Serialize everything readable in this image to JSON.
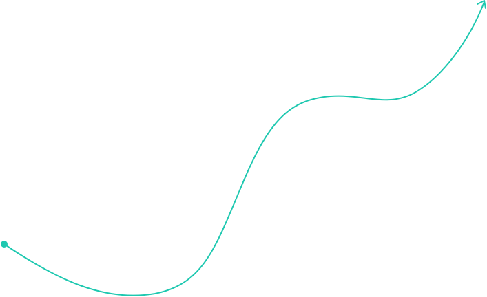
{
  "colors": {
    "stroke": "#1ec8b0"
  },
  "icons": {
    "start": "dot-icon",
    "end": "arrow-head-icon"
  }
}
